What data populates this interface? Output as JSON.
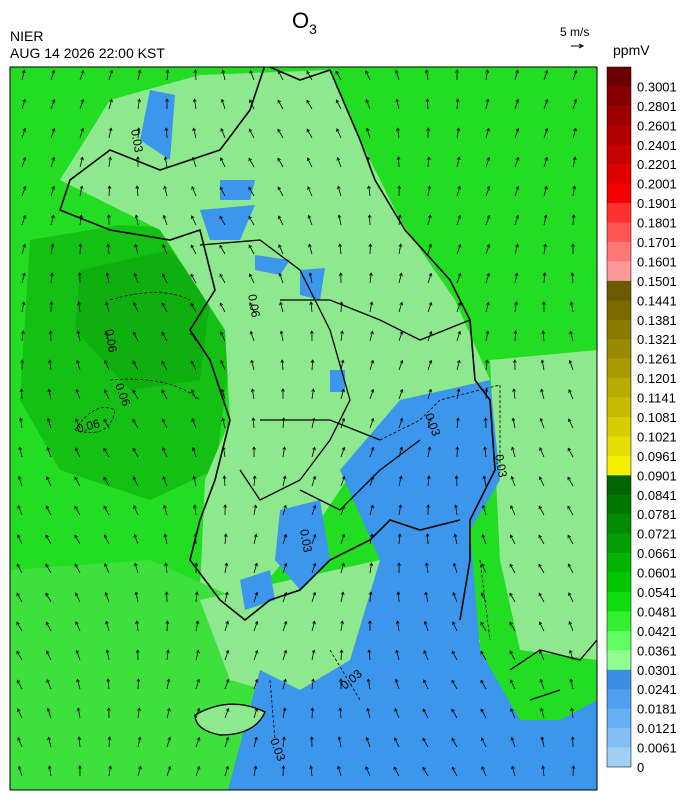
{
  "header": {
    "title": "O",
    "title_subscript": "3",
    "agency": "NIER",
    "datetime": "AUG 14 2026 22:00 KST",
    "wind_scale": "5 m/s"
  },
  "colorbar": {
    "unit": "ppmV",
    "labels": [
      "0.3001",
      "0.2801",
      "0.2601",
      "0.2401",
      "0.2201",
      "0.2001",
      "0.1901",
      "0.1801",
      "0.1701",
      "0.1601",
      "0.1501",
      "0.1441",
      "0.1381",
      "0.1321",
      "0.1261",
      "0.1201",
      "0.1141",
      "0.1081",
      "0.1021",
      "0.0961",
      "0.0901",
      "0.0841",
      "0.0781",
      "0.0721",
      "0.0661",
      "0.0601",
      "0.0541",
      "0.0481",
      "0.0421",
      "0.0361",
      "0.0301",
      "0.0241",
      "0.0181",
      "0.0121",
      "0.0061",
      "0"
    ],
    "colors": [
      "#6b0000",
      "#850000",
      "#9c0000",
      "#b20000",
      "#c80000",
      "#de0000",
      "#f50000",
      "#ff3030",
      "#ff5555",
      "#ff7777",
      "#ff9999",
      "#6b5a00",
      "#7a6a00",
      "#8a7a00",
      "#9a8a00",
      "#aa9a00",
      "#baab00",
      "#cabb00",
      "#d9cc00",
      "#e8dd00",
      "#f5f000",
      "#006400",
      "#007800",
      "#008c00",
      "#00a000",
      "#00b400",
      "#00c800",
      "#10dc10",
      "#30f030",
      "#60ff60",
      "#90ff90",
      "#3a8ee6",
      "#4f9ff0",
      "#67b0f2",
      "#82c0f4",
      "#a0d0f6"
    ]
  },
  "contour_labels": [
    {
      "text": "0.06"
    },
    {
      "text": "0.06"
    },
    {
      "text": "0.06"
    },
    {
      "text": "0.06"
    },
    {
      "text": "0.03"
    },
    {
      "text": "0.03"
    },
    {
      "text": "0.03"
    },
    {
      "text": "0.03"
    },
    {
      "text": "0.03"
    },
    {
      "text": "0.03"
    }
  ]
}
